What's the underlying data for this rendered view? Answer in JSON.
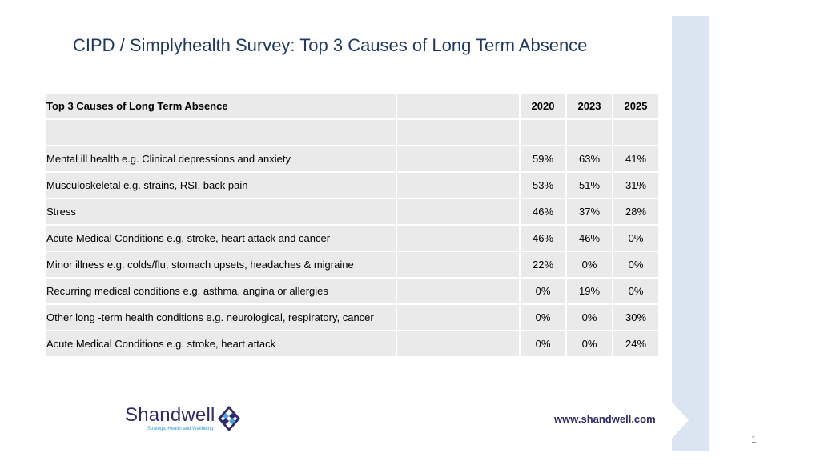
{
  "slide": {
    "title": "CIPD / Simplyhealth Survey:  Top 3 Causes of Long Term Absence",
    "page_number": "1",
    "accent_color": "#dbe4f1",
    "title_color": "#1f3864"
  },
  "table": {
    "header": {
      "label": "Top 3 Causes of Long Term Absence",
      "years": [
        "2020",
        "2023",
        "2025"
      ]
    },
    "rows": [
      {
        "cause": "Mental ill health e.g. Clinical depressions and anxiety",
        "v2020": "59%",
        "v2023": "63%",
        "v2025": "41%"
      },
      {
        "cause": "Musculoskeletal e.g. strains, RSI, back pain",
        "v2020": "53%",
        "v2023": "51%",
        "v2025": "31%"
      },
      {
        "cause": "Stress",
        "v2020": "46%",
        "v2023": "37%",
        "v2025": "28%"
      },
      {
        "cause": "Acute Medical Conditions e.g. stroke, heart attack and cancer",
        "v2020": "46%",
        "v2023": "46%",
        "v2025": "0%"
      },
      {
        "cause": "Minor illness e.g. colds/flu, stomach upsets, headaches & migraine",
        "v2020": "22%",
        "v2023": "0%",
        "v2025": "0%"
      },
      {
        "cause": "Recurring medical conditions e.g. asthma, angina or allergies",
        "v2020": "0%",
        "v2023": "19%",
        "v2025": "0%"
      },
      {
        "cause": "Other long -term health conditions e.g. neurological, respiratory, cancer",
        "v2020": "0%",
        "v2023": "0%",
        "v2025": "30%"
      },
      {
        "cause": "Acute Medical Conditions e.g. stroke, heart attack",
        "v2020": "0%",
        "v2023": "0%",
        "v2025": "24%"
      }
    ]
  },
  "footer": {
    "logo_name": "Shandwell",
    "logo_tagline": "Strategic Health and Wellbeing",
    "website": "www.shandwell.com"
  }
}
